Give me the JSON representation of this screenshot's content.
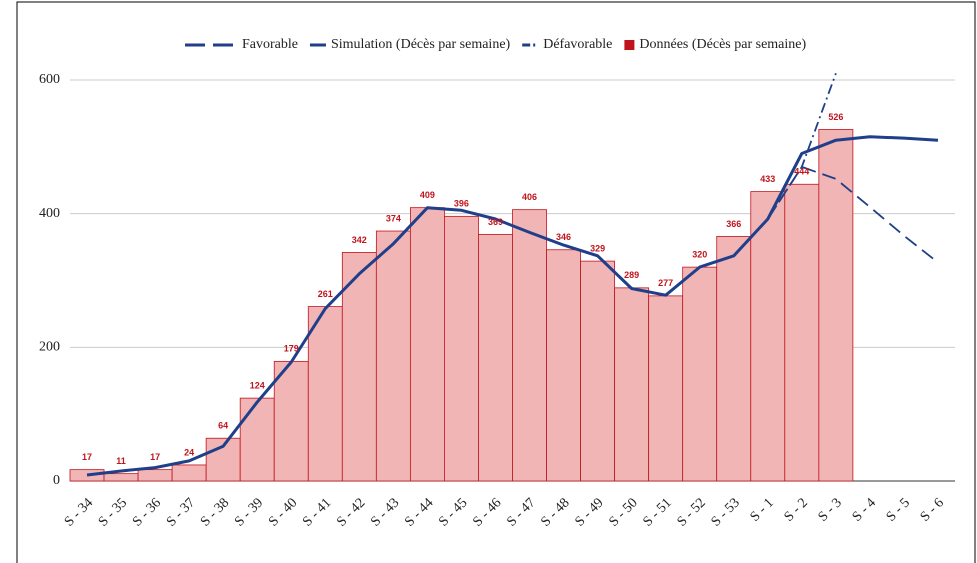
{
  "chart_data": {
    "type": "combo",
    "categories": [
      "S - 34",
      "S - 35",
      "S - 36",
      "S - 37",
      "S - 38",
      "S - 39",
      "S - 40",
      "S - 41",
      "S - 42",
      "S - 43",
      "S - 44",
      "S - 45",
      "S - 46",
      "S - 47",
      "S - 48",
      "S - 49",
      "S - 50",
      "S - 51",
      "S - 52",
      "S - 53",
      "S - 1",
      "S - 2",
      "S - 3",
      "S - 4",
      "S - 5",
      "S - 6"
    ],
    "ylim": [
      0,
      600
    ],
    "yticks": [
      0,
      200,
      400,
      600
    ],
    "grid": true,
    "legend": "top",
    "series": [
      {
        "name": "Favorable",
        "type": "line",
        "dash": "dashed",
        "color": "#1f3f8a",
        "values": [
          null,
          null,
          null,
          null,
          null,
          null,
          null,
          null,
          null,
          null,
          null,
          null,
          null,
          null,
          null,
          null,
          null,
          null,
          null,
          null,
          392,
          470,
          452,
          410,
          367,
          327
        ]
      },
      {
        "name": "Simulation (Décès par semaine)",
        "type": "line",
        "dash": "solid",
        "color": "#1f3f8a",
        "values": [
          9,
          15,
          20,
          30,
          52,
          118,
          178,
          258,
          310,
          355,
          409,
          405,
          392,
          372,
          353,
          337,
          288,
          278,
          320,
          337,
          392,
          490,
          510,
          515,
          513,
          510
        ]
      },
      {
        "name": "Défavorable",
        "type": "line",
        "dash": "dashdot",
        "color": "#1f3f8a",
        "values": [
          null,
          null,
          null,
          null,
          null,
          null,
          null,
          null,
          null,
          null,
          null,
          null,
          null,
          null,
          null,
          null,
          null,
          null,
          null,
          null,
          392,
          470,
          610,
          null,
          null,
          null
        ]
      },
      {
        "name": "Données (Décès par semaine)",
        "type": "step",
        "color": "#c0141c",
        "fill": "#f2b5b5",
        "values": [
          17,
          11,
          17,
          24,
          64,
          124,
          179,
          261,
          342,
          374,
          409,
          396,
          369,
          406,
          346,
          329,
          289,
          277,
          320,
          366,
          433,
          444,
          526,
          null,
          null,
          null
        ]
      }
    ]
  }
}
